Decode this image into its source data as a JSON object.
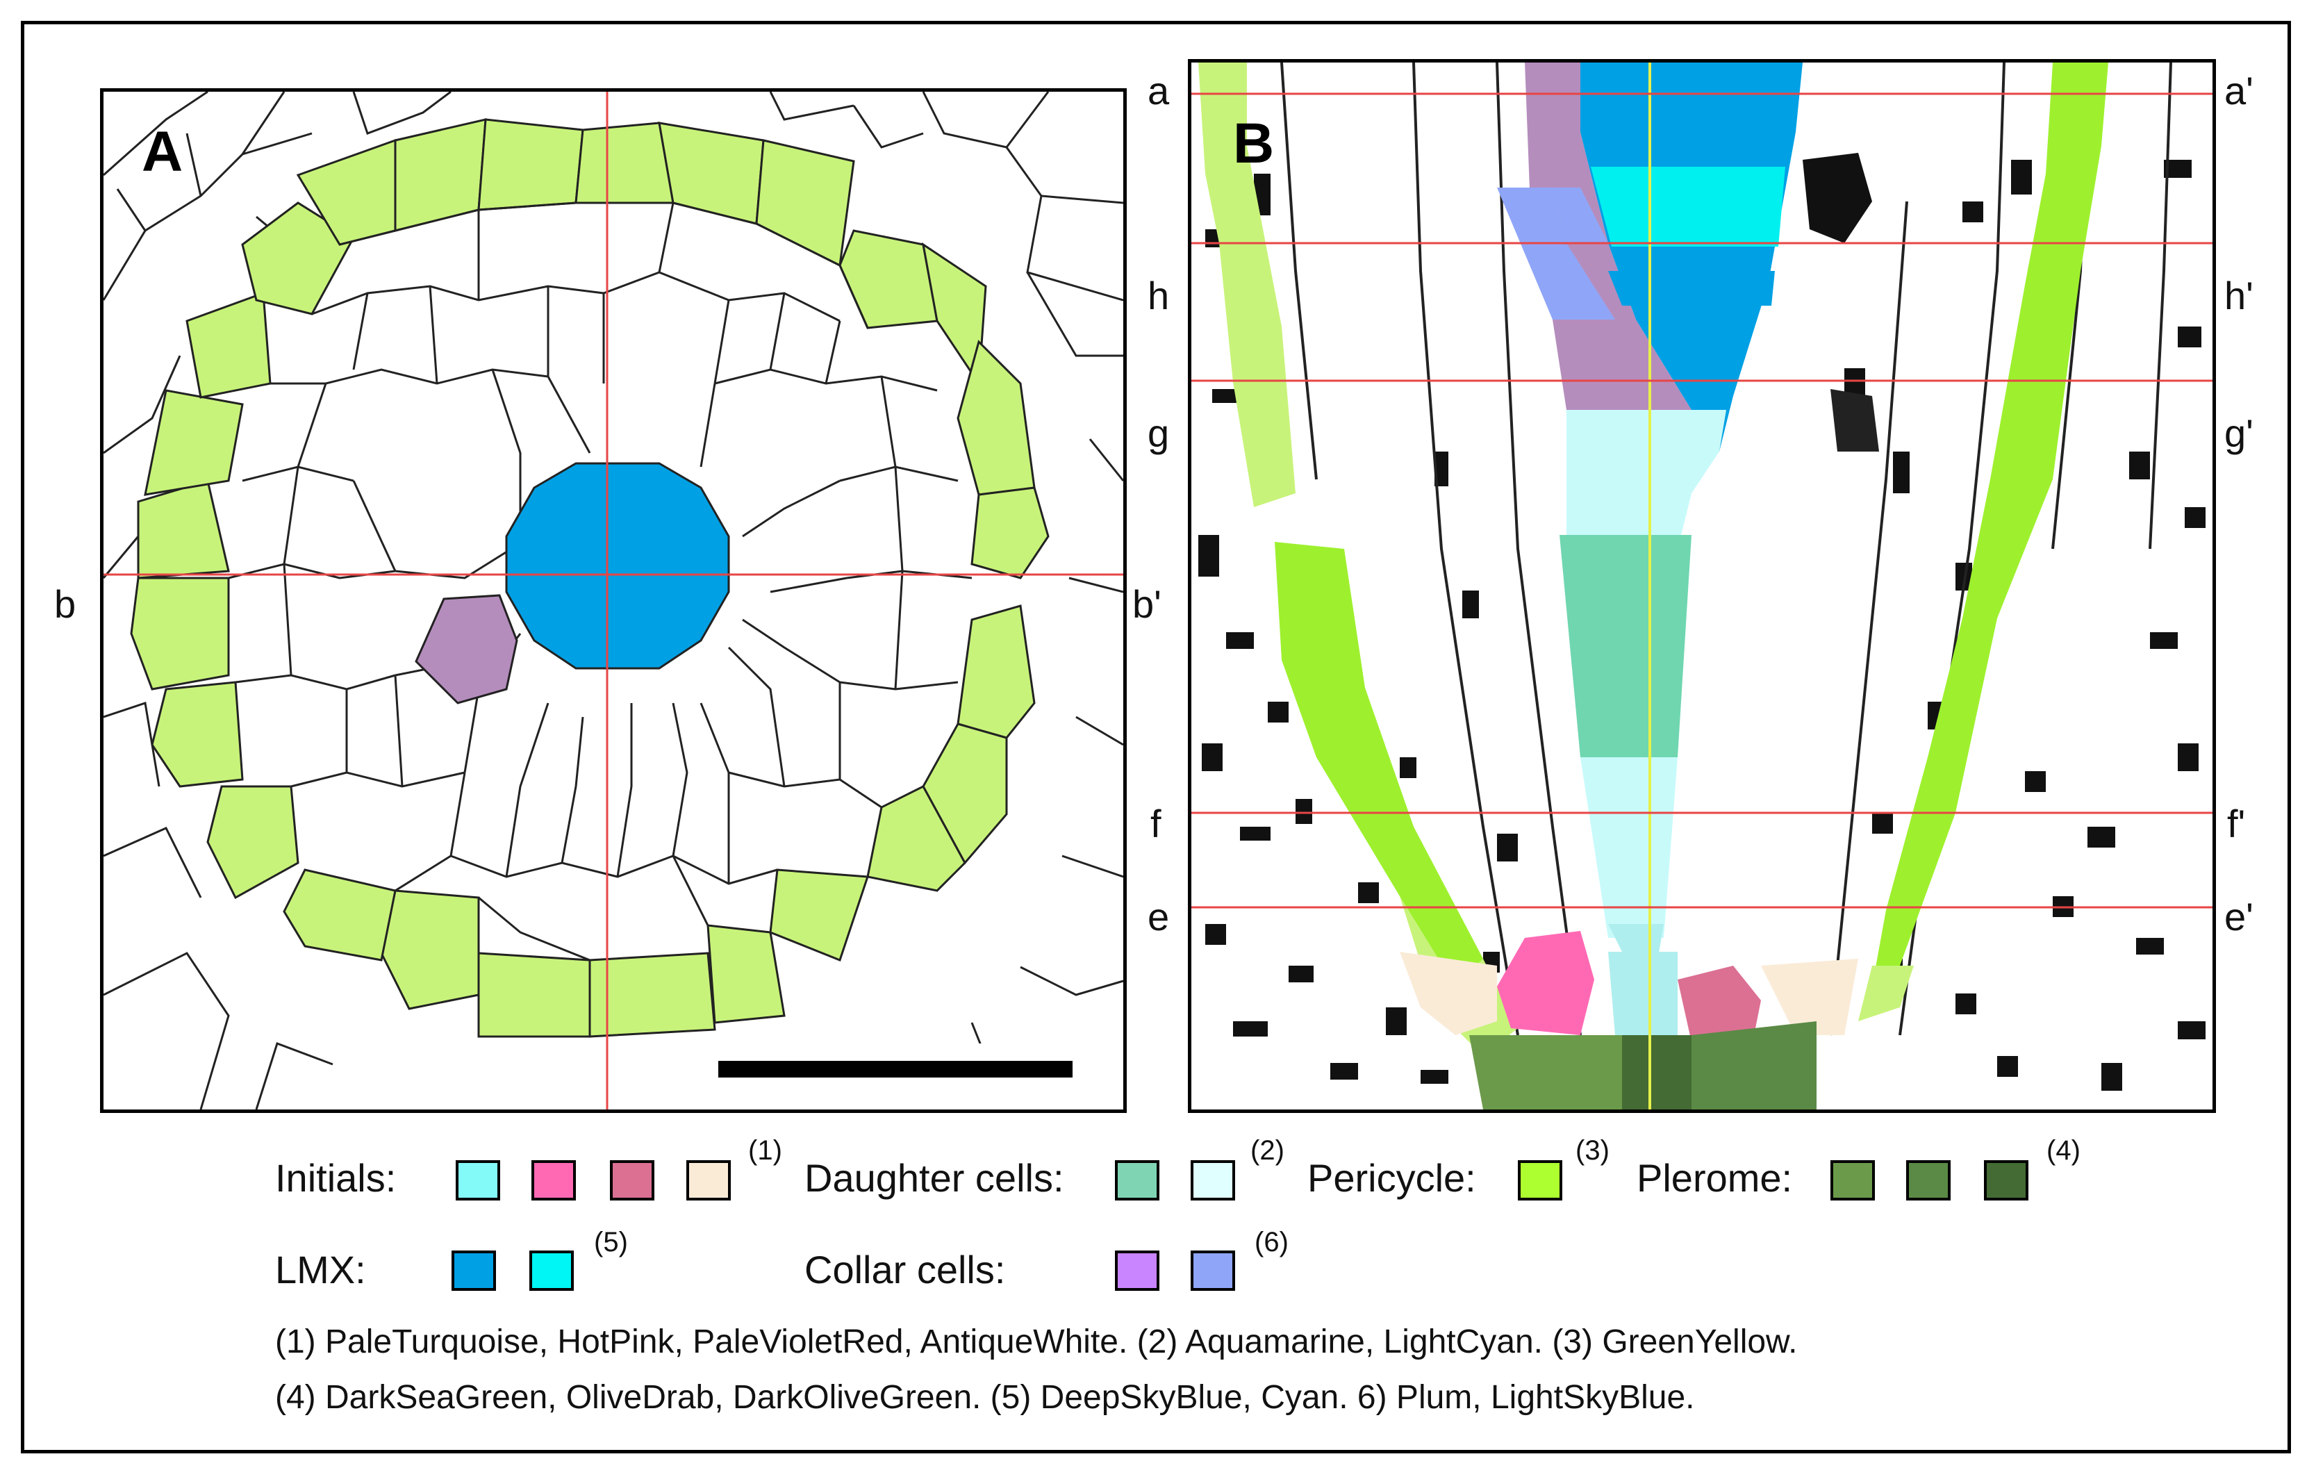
{
  "panel_a": {
    "label": "A",
    "left_marker": "b",
    "right_marker": "b'"
  },
  "panel_b": {
    "label": "B",
    "left_markers": [
      "a",
      "h",
      "g",
      "f",
      "e"
    ],
    "right_markers": [
      "a'",
      "h'",
      "g'",
      "f'",
      "e'"
    ]
  },
  "legend": {
    "initials": {
      "label": "Initials:",
      "note": "(1)",
      "swatches": [
        "#AFEEEE",
        "#FF69B4",
        "#DB7093",
        "#FAEBD7"
      ],
      "swatch_alt": "#84FAF8"
    },
    "daughter": {
      "label": "Daughter cells:",
      "note": "(2)",
      "swatches": [
        "#7FD4B4",
        "#E0FFFF"
      ]
    },
    "pericycle": {
      "label": "Pericycle:",
      "note": "(3)",
      "swatches": [
        "#ADFF2F"
      ]
    },
    "plerome": {
      "label": "Plerome:",
      "note": "(4)",
      "swatches": [
        "#6B9A4B",
        "#5A8A45",
        "#436B33"
      ]
    },
    "lmx": {
      "label": "LMX:",
      "note": "(5)",
      "swatches": [
        "#00A0E4",
        "#00F5F5"
      ]
    },
    "collar": {
      "label": "Collar cells:",
      "note": "(6)",
      "swatches": [
        "#C985FF",
        "#8FA6F8"
      ]
    }
  },
  "notes": {
    "line1": "(1) PaleTurquoise, HotPink, PaleVioletRed, AntiqueWhite. (2) Aquamarine, LightCyan. (3) GreenYellow.",
    "line2": "(4) DarkSeaGreen, OliveDrab, DarkOliveGreen. (5) DeepSkyBlue, Cyan. 6) Plum, LightSkyBlue."
  },
  "colors": {
    "pericycle_fill": "#C8F37A",
    "pericycle_bright": "#9EF02E",
    "lmx_fill": "#00A0E4",
    "cyan_fill": "#00F0F0",
    "collar_violet": "#B58DBD",
    "collar_blue": "#8FA6F8",
    "light_cyan": "#C8FAFA",
    "aquamarine": "#6FD6B0",
    "guide_red": "#E84545",
    "guide_yellow": "#E6F04A"
  }
}
